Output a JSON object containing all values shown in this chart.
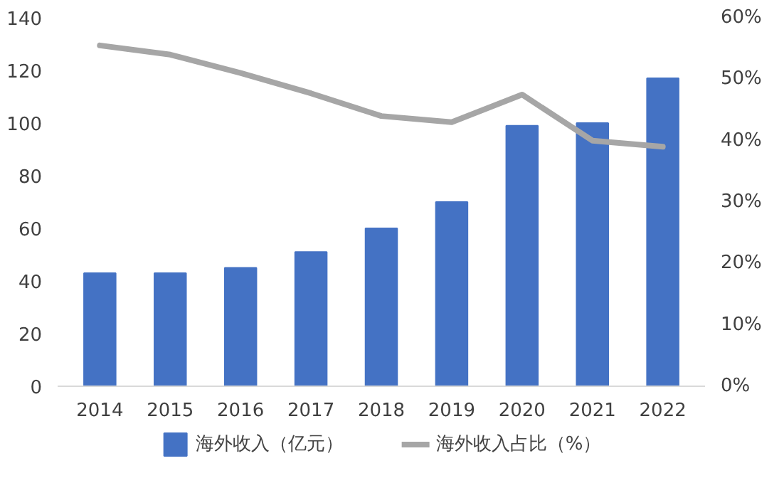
{
  "chart_data": {
    "type": "bar",
    "categories": [
      "2014",
      "2015",
      "2016",
      "2017",
      "2018",
      "2019",
      "2020",
      "2021",
      "2022"
    ],
    "series": [
      {
        "name": "海外收入（亿元）",
        "color": "#4472c4",
        "values": [
          43,
          43,
          45,
          51,
          60,
          70,
          99,
          100,
          117
        ]
      },
      {
        "name": "海外收入占比（%）",
        "color": "#a6a6a6",
        "type": "line",
        "axis": "y2",
        "values": [
          55.5,
          54,
          51,
          47.7,
          44,
          43,
          47.5,
          40,
          39
        ]
      }
    ],
    "ylim": [
      0,
      140
    ],
    "yticks": [
      0,
      20,
      40,
      60,
      80,
      100,
      120,
      140
    ],
    "y2lim": [
      0,
      60
    ],
    "y2ticks": [
      {
        "value": 0,
        "label": "0%"
      },
      {
        "value": 10,
        "label": "10%"
      },
      {
        "value": 20,
        "label": "20%"
      },
      {
        "value": 30,
        "label": "30%"
      },
      {
        "value": 40,
        "label": "40%"
      },
      {
        "value": 50,
        "label": "50%"
      },
      {
        "value": 60,
        "label": "60%"
      }
    ],
    "grid": false,
    "legend": "bottom"
  }
}
